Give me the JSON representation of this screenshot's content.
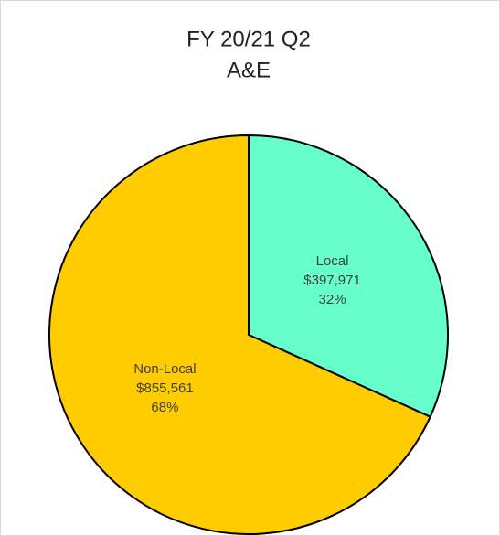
{
  "chart_data": {
    "type": "pie",
    "title": "FY 20/21 Q2",
    "subtitle": "A&E",
    "categories": [
      "Local",
      "Non-Local"
    ],
    "values": [
      397971,
      855561
    ],
    "value_labels": [
      "$397,971",
      "$855,561"
    ],
    "percentage_labels": [
      "32%",
      "68%"
    ],
    "colors": [
      "#66ffcc",
      "#ffcc00"
    ]
  }
}
